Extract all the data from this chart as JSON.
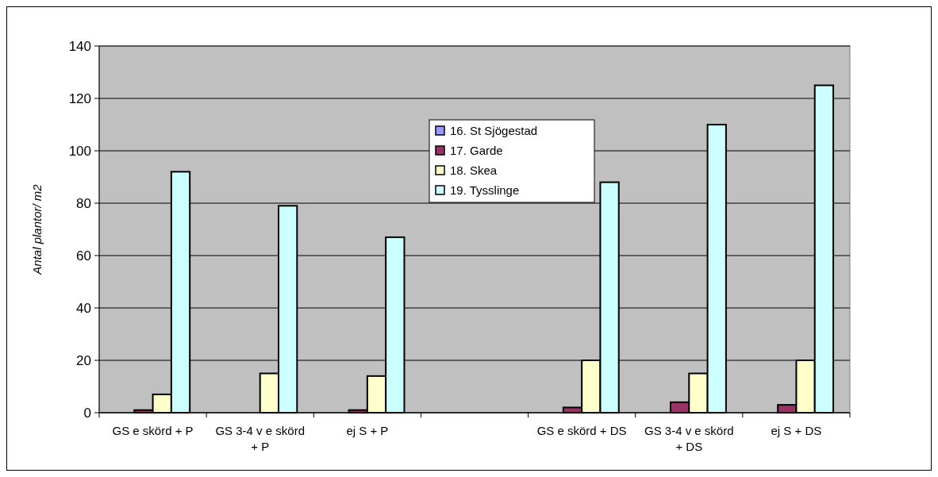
{
  "chart_data": {
    "type": "bar",
    "ylabel": "Antal plantor/ m2",
    "categories": [
      "GS e skörd + P",
      "GS 3-4 v e skörd + P",
      "ej S + P",
      null,
      "GS e skörd + DS",
      "GS 3-4 v e skörd + DS",
      "ej S + DS"
    ],
    "series": [
      {
        "name": "16. St Sjögestad",
        "color": "#9999ff",
        "values": [
          null,
          null,
          null,
          null,
          null,
          null,
          null
        ]
      },
      {
        "name": "17. Garde",
        "color": "#993366",
        "values": [
          1,
          null,
          1,
          null,
          2,
          4,
          3
        ]
      },
      {
        "name": "18. Skea",
        "color": "#ffffcc",
        "values": [
          7,
          15,
          14,
          null,
          20,
          15,
          20
        ]
      },
      {
        "name": "19. Tysslinge",
        "color": "#ccffff",
        "values": [
          92,
          79,
          67,
          null,
          88,
          110,
          125
        ]
      }
    ],
    "ylim": [
      0,
      140
    ],
    "yticks": [
      0,
      20,
      40,
      60,
      80,
      100,
      120,
      140
    ],
    "grid": "y",
    "legend": "top"
  }
}
